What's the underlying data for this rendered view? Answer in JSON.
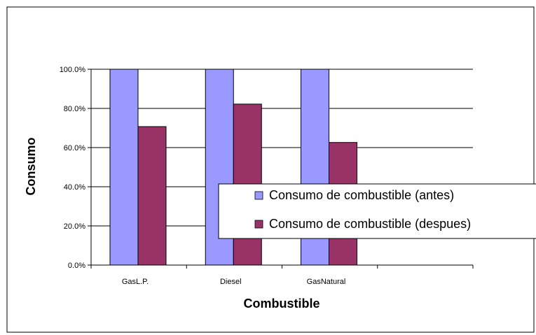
{
  "chart_data": {
    "type": "bar",
    "categories": [
      "GasL.P.",
      "Diesel",
      "GasNatural"
    ],
    "series": [
      {
        "name": "Consumo de combustible (antes)",
        "values": [
          100.0,
          100.0,
          100.0
        ],
        "color": "#9999FF"
      },
      {
        "name": "Consumo de combustible (despues)",
        "values": [
          70.7,
          82.2,
          62.6
        ],
        "color": "#993366"
      }
    ],
    "xlabel": "Combustible",
    "ylabel": "Consumo",
    "ylim": [
      0,
      100
    ],
    "yticks": [
      "0.0%",
      "20.0%",
      "40.0%",
      "60.0%",
      "80.0%",
      "100.0%"
    ],
    "ytick_values": [
      0,
      20,
      40,
      60,
      80,
      100
    ],
    "grid": true,
    "legend_position": "lower-right inside plot"
  }
}
